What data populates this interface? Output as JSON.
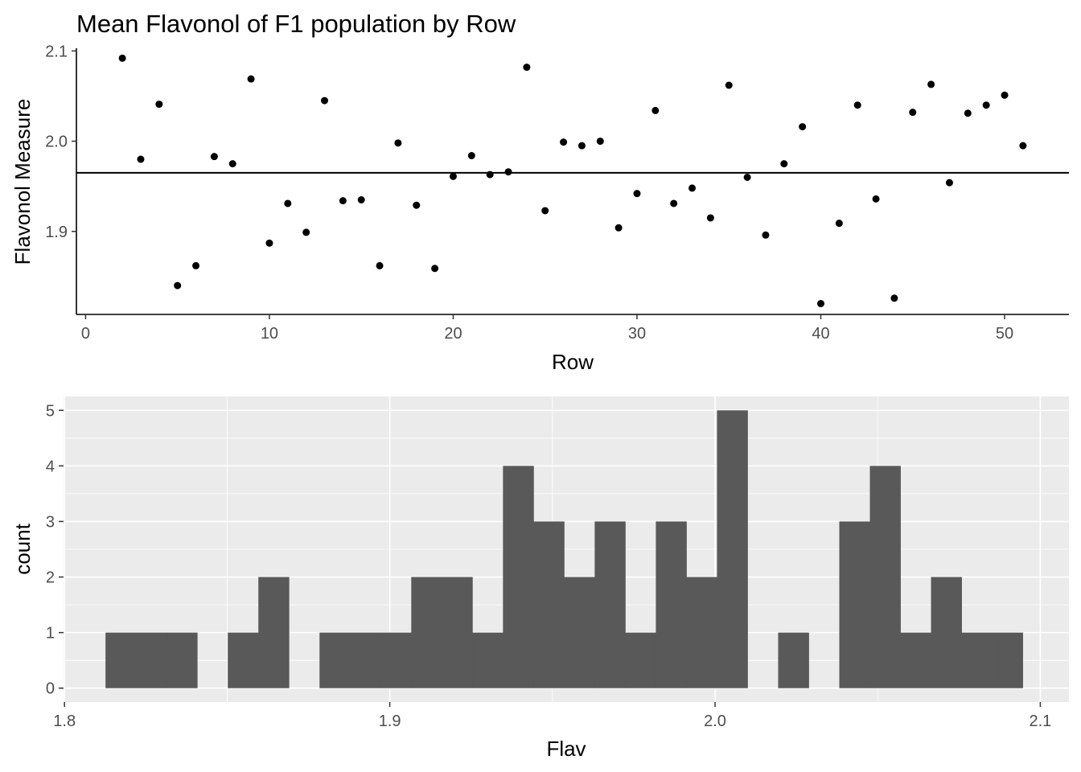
{
  "chart_data": [
    {
      "type": "scatter",
      "title": "Mean Flavonol of F1 population by Row",
      "xlabel": "Row",
      "ylabel": "Flavonol Measure",
      "xlim": [
        -0.5,
        53.5
      ],
      "ylim": [
        1.808,
        2.103
      ],
      "xticks": [
        0,
        10,
        20,
        30,
        40,
        50
      ],
      "yticks": [
        1.9,
        2.0,
        2.1
      ],
      "xtick_labels": [
        "0",
        "10",
        "20",
        "30",
        "40",
        "50"
      ],
      "ytick_labels": [
        "1.9",
        "2.0",
        "2.1"
      ],
      "reference_line_y": 1.965,
      "grid": false,
      "theme": "classic",
      "points": [
        {
          "x": 2,
          "y": 2.092
        },
        {
          "x": 3,
          "y": 1.98
        },
        {
          "x": 4,
          "y": 2.041
        },
        {
          "x": 5,
          "y": 1.84
        },
        {
          "x": 6,
          "y": 1.862
        },
        {
          "x": 7,
          "y": 1.983
        },
        {
          "x": 8,
          "y": 1.975
        },
        {
          "x": 9,
          "y": 2.069
        },
        {
          "x": 10,
          "y": 1.887
        },
        {
          "x": 11,
          "y": 1.931
        },
        {
          "x": 12,
          "y": 1.899
        },
        {
          "x": 13,
          "y": 2.045
        },
        {
          "x": 14,
          "y": 1.934
        },
        {
          "x": 15,
          "y": 1.935
        },
        {
          "x": 16,
          "y": 1.862
        },
        {
          "x": 17,
          "y": 1.998
        },
        {
          "x": 18,
          "y": 1.929
        },
        {
          "x": 19,
          "y": 1.859
        },
        {
          "x": 20,
          "y": 1.961
        },
        {
          "x": 21,
          "y": 1.984
        },
        {
          "x": 22,
          "y": 1.963
        },
        {
          "x": 23,
          "y": 1.966
        },
        {
          "x": 24,
          "y": 2.082
        },
        {
          "x": 25,
          "y": 1.923
        },
        {
          "x": 26,
          "y": 1.999
        },
        {
          "x": 27,
          "y": 1.995
        },
        {
          "x": 28,
          "y": 2.0
        },
        {
          "x": 29,
          "y": 1.904
        },
        {
          "x": 30,
          "y": 1.942
        },
        {
          "x": 31,
          "y": 2.034
        },
        {
          "x": 32,
          "y": 1.931
        },
        {
          "x": 33,
          "y": 1.948
        },
        {
          "x": 34,
          "y": 1.915
        },
        {
          "x": 35,
          "y": 2.062
        },
        {
          "x": 36,
          "y": 1.96
        },
        {
          "x": 37,
          "y": 1.896
        },
        {
          "x": 38,
          "y": 1.975
        },
        {
          "x": 39,
          "y": 2.016
        },
        {
          "x": 40,
          "y": 1.82
        },
        {
          "x": 41,
          "y": 1.909
        },
        {
          "x": 42,
          "y": 2.04
        },
        {
          "x": 43,
          "y": 1.936
        },
        {
          "x": 44,
          "y": 1.826
        },
        {
          "x": 45,
          "y": 2.032
        },
        {
          "x": 46,
          "y": 2.063
        },
        {
          "x": 47,
          "y": 1.954
        },
        {
          "x": 48,
          "y": 2.031
        },
        {
          "x": 49,
          "y": 2.04
        },
        {
          "x": 50,
          "y": 2.051
        },
        {
          "x": 51,
          "y": 1.995
        }
      ],
      "point_color": "#000000",
      "line_color": "#000000"
    },
    {
      "type": "bar",
      "subtype": "histogram",
      "title": "",
      "xlabel": "Flav",
      "ylabel": "count",
      "xlim": [
        1.8,
        2.1
      ],
      "ylim": [
        -0.25,
        5.25
      ],
      "xticks": [
        1.8,
        1.9,
        2.0,
        2.1
      ],
      "yticks": [
        0,
        1,
        2,
        3,
        4,
        5
      ],
      "xtick_labels": [
        "1.8",
        "1.9",
        "2.0",
        "2.1"
      ],
      "ytick_labels": [
        "0",
        "1",
        "2",
        "3",
        "4",
        "5"
      ],
      "grid": true,
      "theme": "gray",
      "panel_color": "#ebebeb",
      "bar_color": "#595959",
      "bin_width": 0.0094,
      "first_bin_start": 1.8126,
      "counts": [
        1,
        1,
        1,
        0,
        1,
        2,
        0,
        1,
        1,
        1,
        2,
        2,
        1,
        4,
        3,
        2,
        3,
        1,
        3,
        2,
        5,
        0,
        1,
        0,
        3,
        4,
        1,
        2,
        1,
        1
      ]
    }
  ]
}
